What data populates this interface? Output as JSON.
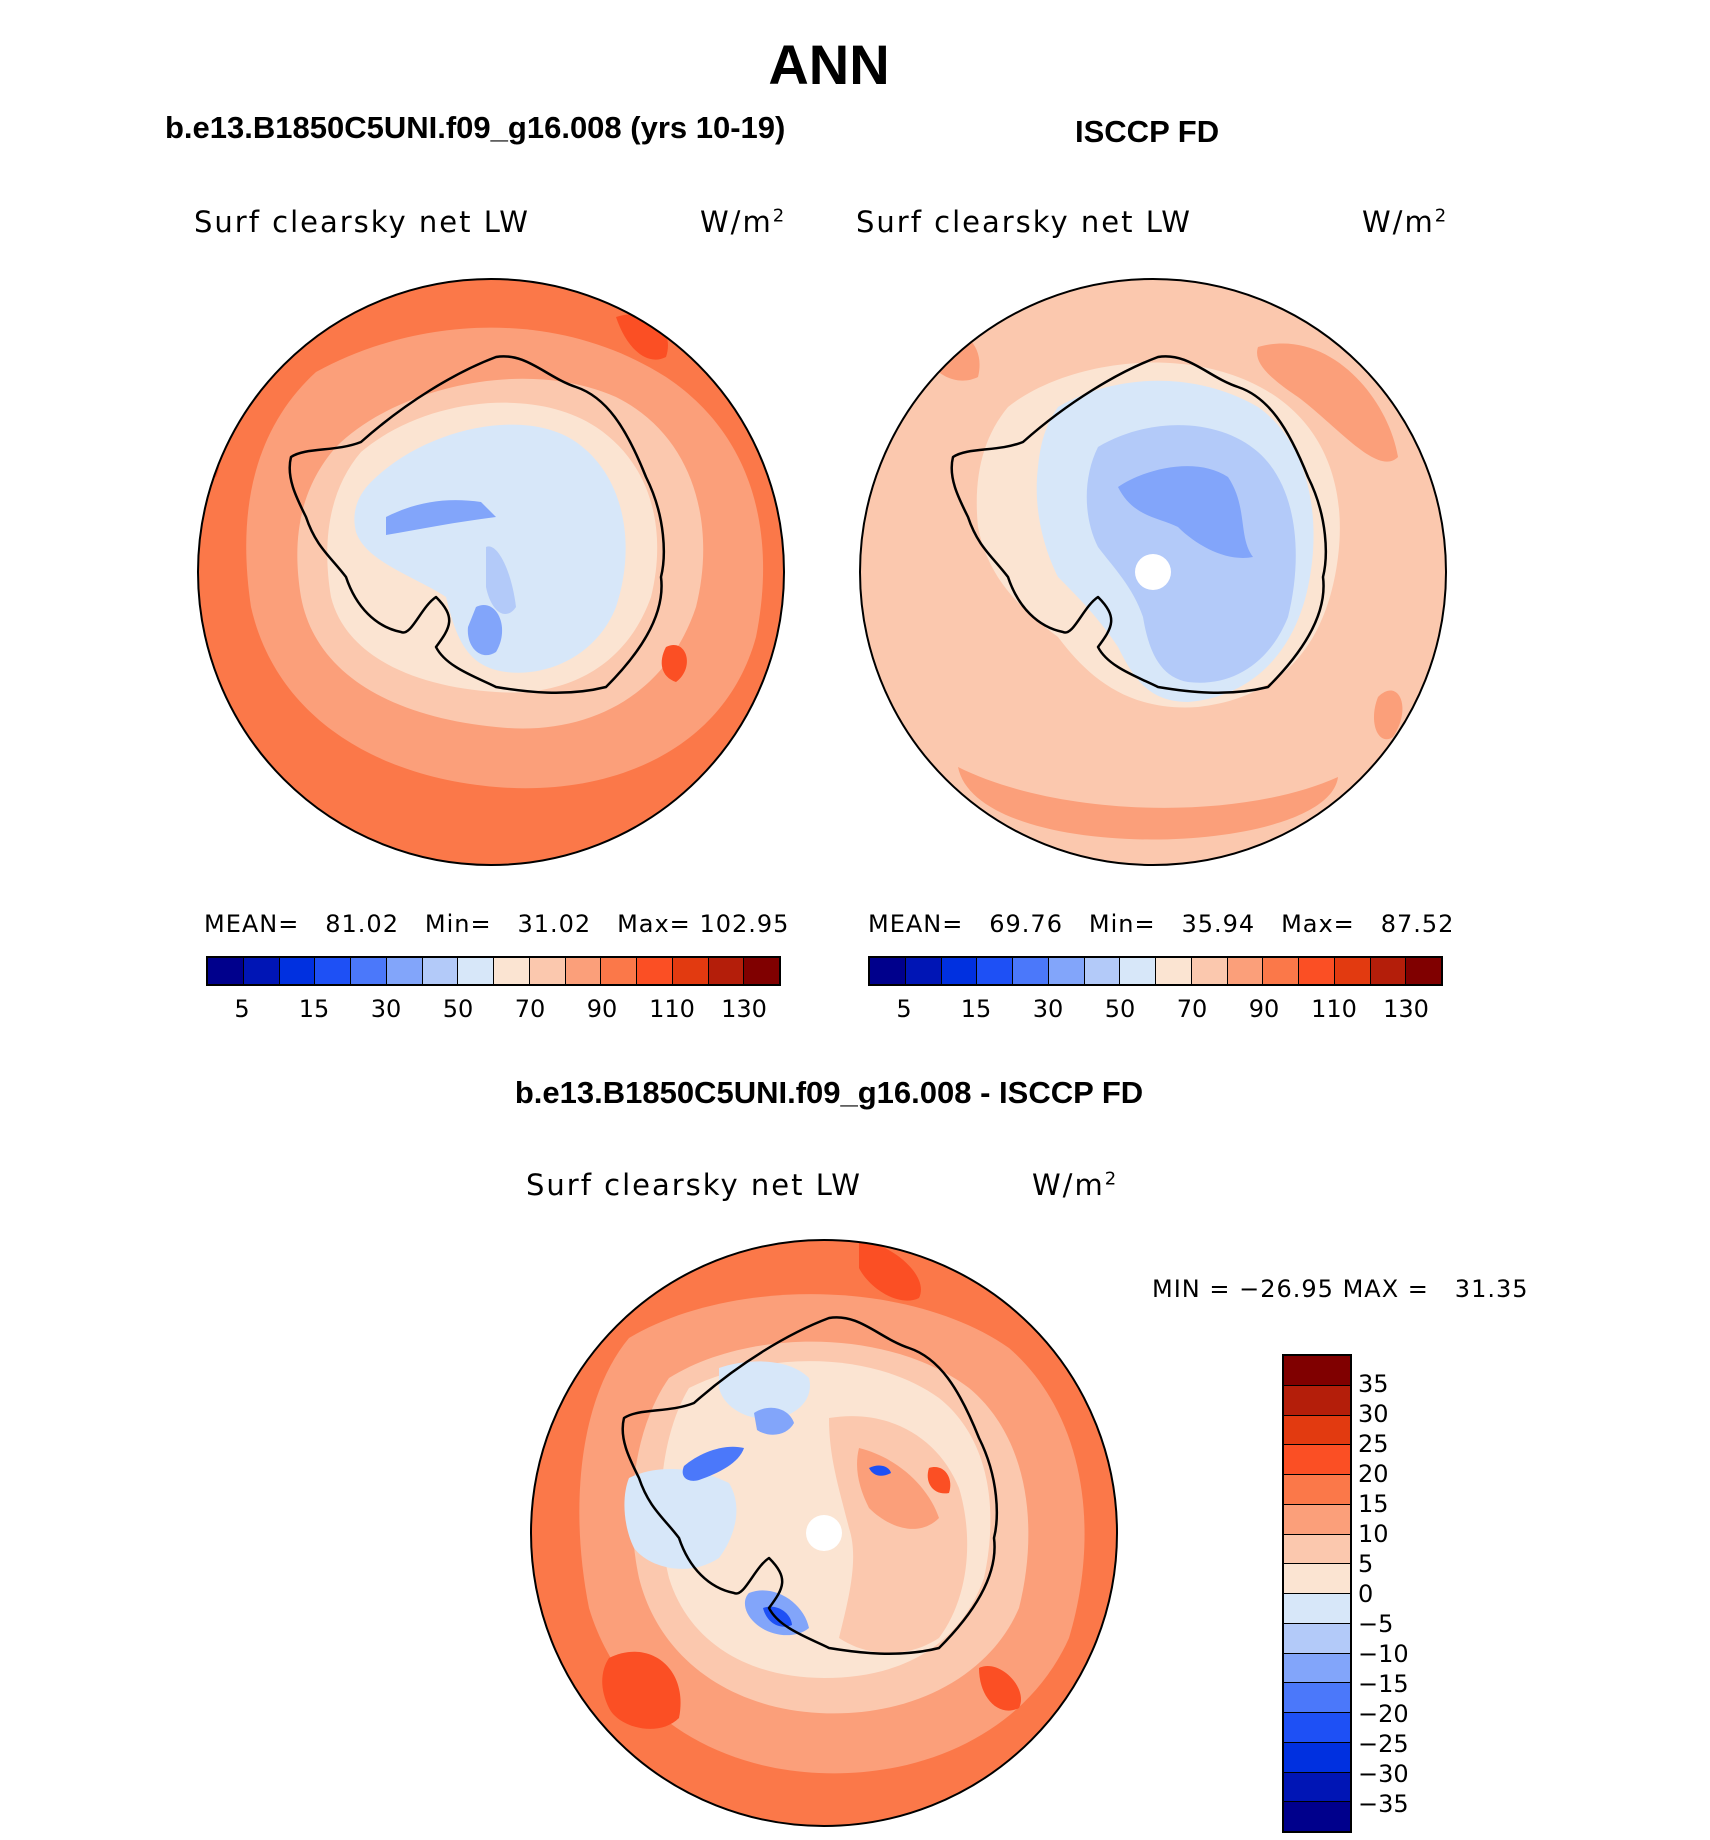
{
  "title": "ANN",
  "panels": [
    {
      "case": "b.e13.B1850C5UNI.f09_g16.008 (yrs 10-19)",
      "variable": "Surf clearsky net LW",
      "units_base": "W/m",
      "units_exp": "2",
      "stats": {
        "mean_label": "MEAN=",
        "mean": "81.02",
        "min_label": "Min=",
        "min": "31.02",
        "max_label": "Max=",
        "max": "102.95"
      },
      "colorbar_ticks": [
        "5",
        "15",
        "30",
        "50",
        "70",
        "90",
        "110",
        "130"
      ]
    },
    {
      "case": "ISCCP FD",
      "variable": "Surf clearsky net LW",
      "units_base": "W/m",
      "units_exp": "2",
      "stats": {
        "mean_label": "MEAN=",
        "mean": "69.76",
        "min_label": "Min=",
        "min": "35.94",
        "max_label": "Max=",
        "max": "87.52"
      },
      "colorbar_ticks": [
        "5",
        "15",
        "30",
        "50",
        "70",
        "90",
        "110",
        "130"
      ]
    }
  ],
  "diff_panel": {
    "title": "b.e13.B1850C5UNI.f09_g16.008 - ISCCP FD",
    "variable": "Surf clearsky net LW",
    "units_base": "W/m",
    "units_exp": "2",
    "minmax": {
      "min_label": "MIN =",
      "min": "−26.95",
      "max_label": "MAX =",
      "max": "31.35"
    },
    "colorbar_ticks": [
      "35",
      "30",
      "25",
      "20",
      "15",
      "10",
      "5",
      "0",
      "−5",
      "−10",
      "−15",
      "−20",
      "−25",
      "−30",
      "−35"
    ]
  },
  "colors": {
    "seq_scale": [
      "#00008c",
      "#0015b5",
      "#0030e0",
      "#1e50f5",
      "#4b78fa",
      "#82a5fa",
      "#b3caf9",
      "#d7e7f9",
      "#fbe4d2",
      "#fbc8ae",
      "#fb9f7a",
      "#fb7849",
      "#fb4f24",
      "#e23a10",
      "#b41e0a",
      "#800000"
    ],
    "diff_scale": [
      "#800000",
      "#b41e0a",
      "#e23a10",
      "#fb4f24",
      "#fb7849",
      "#fb9f7a",
      "#fbc8ae",
      "#fbe4d2",
      "#d7e7f9",
      "#b3caf9",
      "#82a5fa",
      "#4b78fa",
      "#1e50f5",
      "#0030e0",
      "#0015b5",
      "#00008c"
    ]
  }
}
